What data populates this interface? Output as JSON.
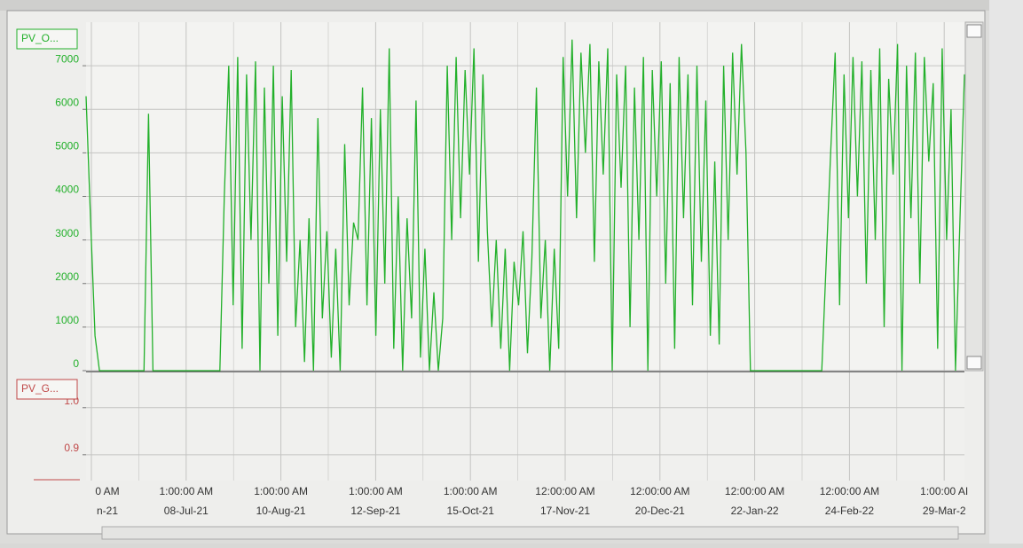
{
  "chart_data": [
    {
      "type": "line",
      "series": [
        {
          "name": "PV_O...",
          "color": "#22b02a",
          "values": [
            6300,
            3500,
            800,
            0,
            0,
            0,
            0,
            0,
            0,
            0,
            0,
            0,
            0,
            0,
            5900,
            0,
            0,
            0,
            0,
            0,
            0,
            0,
            0,
            0,
            0,
            0,
            0,
            0,
            0,
            0,
            0,
            4000,
            7000,
            1500,
            7200,
            500,
            6800,
            3000,
            7100,
            0,
            6500,
            2000,
            7000,
            800,
            6300,
            2500,
            6900,
            1000,
            3000,
            200,
            3500,
            0,
            5800,
            1200,
            3200,
            300,
            2800,
            0,
            5200,
            1500,
            3400,
            3000,
            6500,
            1500,
            5800,
            800,
            6000,
            2000,
            7400,
            500,
            4000,
            0,
            3500,
            1200,
            6200,
            300,
            2800,
            0,
            1800,
            0,
            1200,
            7000,
            3000,
            7200,
            3500,
            6900,
            4500,
            7400,
            2500,
            6800,
            3200,
            1000,
            3000,
            500,
            2800,
            0,
            2500,
            1500,
            3200,
            400,
            2600,
            6500,
            1200,
            3000,
            0,
            2800,
            500,
            7200,
            4000,
            7600,
            3500,
            7300,
            5000,
            7500,
            2500,
            7100,
            4500,
            7400,
            0,
            6800,
            4200,
            7000,
            1000,
            6500,
            3000,
            7200,
            0,
            6900,
            4000,
            7100,
            2000,
            6600,
            500,
            7200,
            3500,
            6800,
            1500,
            7000,
            2500,
            6200,
            800,
            4800,
            600,
            7000,
            3000,
            7300,
            4500,
            7500,
            5000,
            0,
            0,
            0,
            0,
            0,
            0,
            0,
            0,
            0,
            0,
            0,
            0,
            0,
            0,
            0,
            0,
            0,
            2500,
            5000,
            7300,
            1500,
            6800,
            3500,
            7200,
            4000,
            7100,
            2000,
            6900,
            3000,
            7400,
            1000,
            6700,
            4500,
            7500,
            0,
            7000,
            3500,
            7300,
            2000,
            7200,
            4800,
            6600,
            500,
            7400,
            3000,
            6000,
            0,
            3500,
            6800
          ]
        }
      ],
      "ylim": [
        0,
        8000
      ],
      "yticks": [
        0,
        1000,
        2000,
        3000,
        4000,
        5000,
        6000,
        7000
      ],
      "grid": true,
      "xtick_labels": [
        {
          "time": "0 AM",
          "date": "n-21"
        },
        {
          "time": "1:00:00 AM",
          "date": "08-Jul-21"
        },
        {
          "time": "1:00:00 AM",
          "date": "10-Aug-21"
        },
        {
          "time": "1:00:00 AM",
          "date": "12-Sep-21"
        },
        {
          "time": "1:00:00 AM",
          "date": "15-Oct-21"
        },
        {
          "time": "12:00:00 AM",
          "date": "17-Nov-21"
        },
        {
          "time": "12:00:00 AM",
          "date": "20-Dec-21"
        },
        {
          "time": "12:00:00 AM",
          "date": "22-Jan-22"
        },
        {
          "time": "12:00:00 AM",
          "date": "24-Feb-22"
        },
        {
          "time": "1:00:00 AI",
          "date": "29-Mar-2"
        }
      ]
    },
    {
      "type": "line",
      "series": [
        {
          "name": "PV_G...",
          "color": "#c04848",
          "values": []
        }
      ],
      "ylim": [
        0.845,
        1.075
      ],
      "yticks": [
        {
          "value": 1,
          "label": "1.0"
        },
        0.9
      ],
      "grid": true
    }
  ]
}
